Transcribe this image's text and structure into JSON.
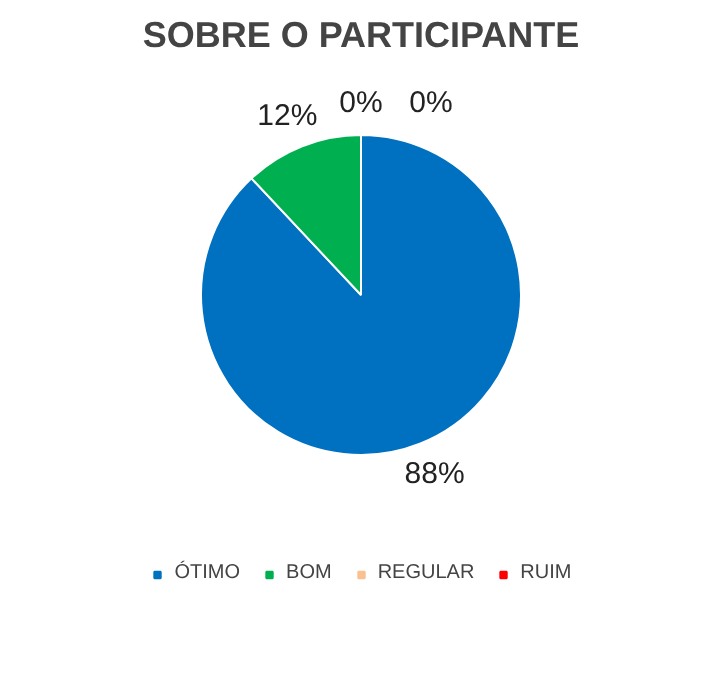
{
  "chart_data": {
    "type": "pie",
    "title": "SOBRE O PARTICIPANTE",
    "categories": [
      "ÓTIMO",
      "BOM",
      "REGULAR",
      "RUIM"
    ],
    "values": [
      88,
      12,
      0,
      0
    ],
    "colors": [
      "#0070c0",
      "#00b050",
      "#fac090",
      "#ff0000"
    ],
    "value_labels": [
      "88%",
      "12%",
      "0%",
      "0%"
    ],
    "legend": "bottom"
  }
}
